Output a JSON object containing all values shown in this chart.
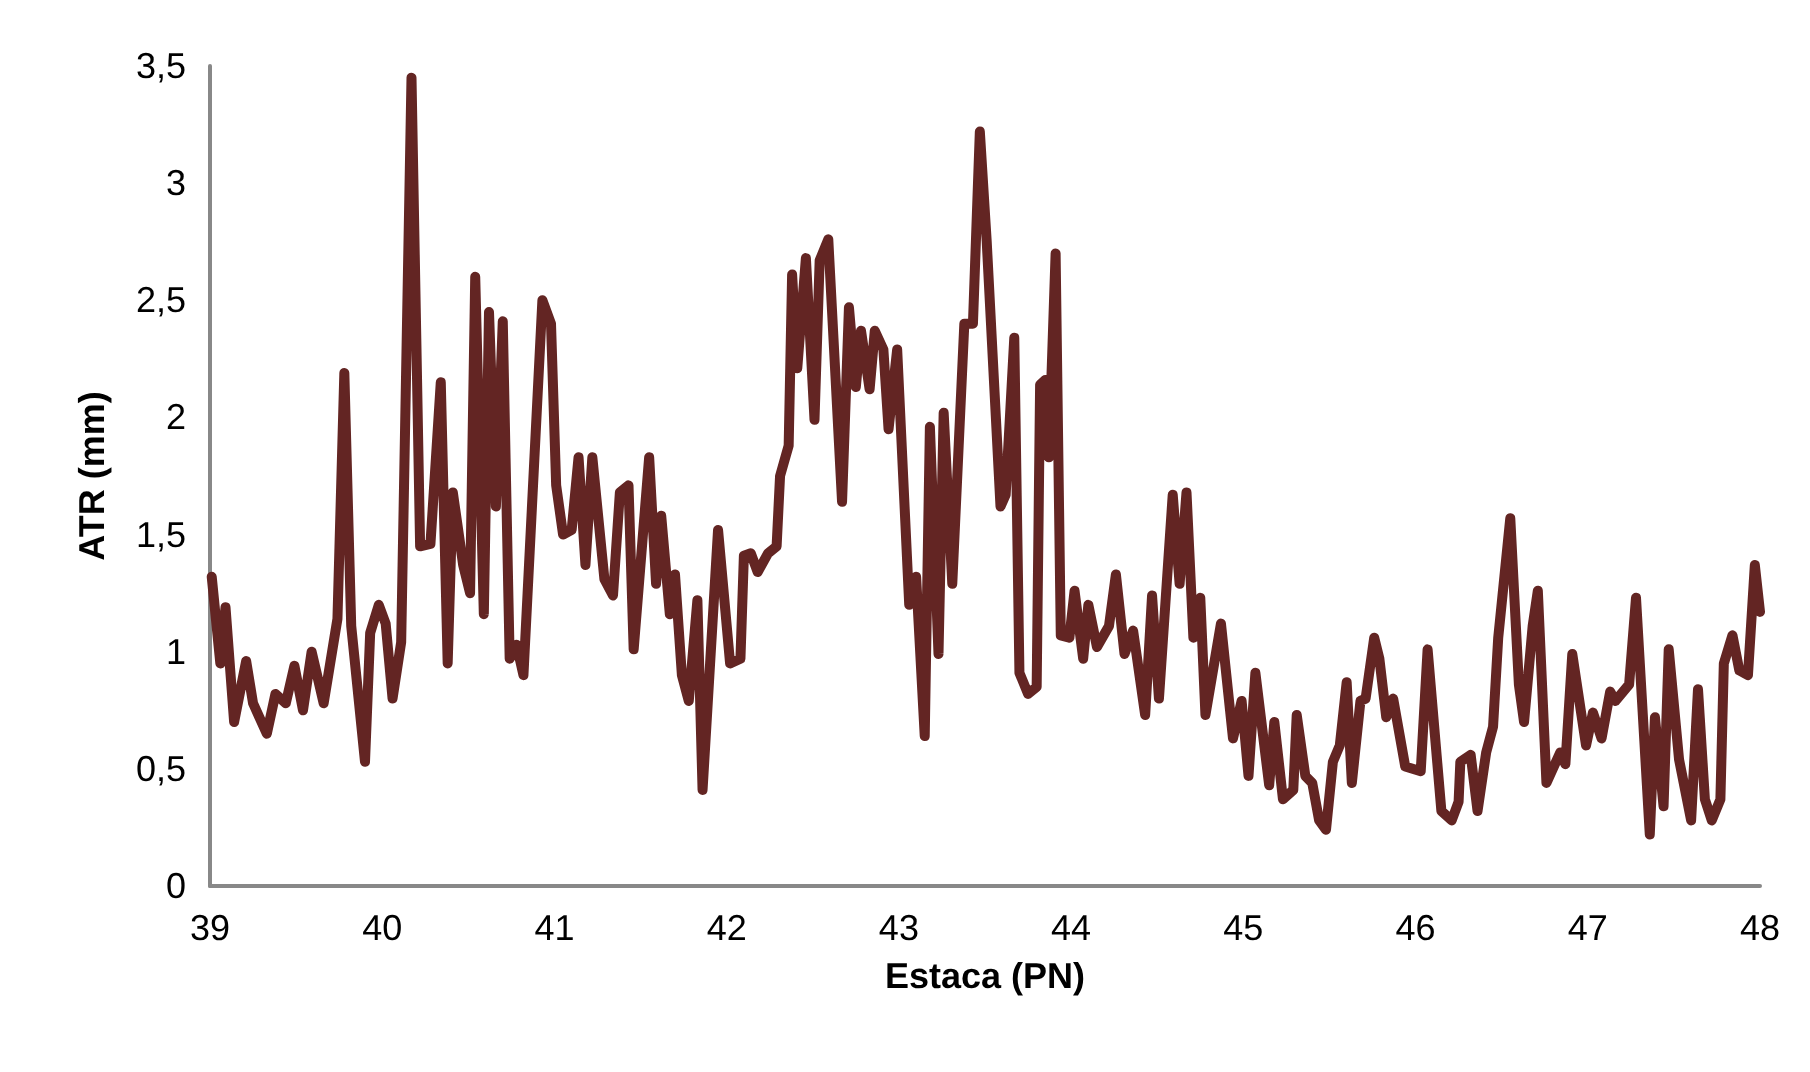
{
  "chart_data": {
    "type": "line",
    "xlabel": "Estaca (PN)",
    "ylabel": "ATR (mm)",
    "xlim": [
      39,
      48
    ],
    "xticks": [
      39,
      40,
      41,
      42,
      43,
      44,
      45,
      46,
      47,
      48
    ],
    "ylim": [
      0,
      3.5
    ],
    "yticks": [
      0,
      {
        "value": 0.5,
        "label": "0,5"
      },
      1,
      {
        "value": 1.5,
        "label": "1,5"
      },
      2,
      {
        "value": 2.5,
        "label": "2,5"
      },
      3,
      {
        "value": 3.5,
        "label": "3,5"
      }
    ],
    "grid": false,
    "marker": "none",
    "line_style": "solid",
    "series": [
      {
        "color": "#632523",
        "x": [
          39.01,
          39.06,
          39.09,
          39.14,
          39.21,
          39.25,
          39.33,
          39.38,
          39.44,
          39.49,
          39.54,
          39.59,
          39.66,
          39.74,
          39.78,
          39.82,
          39.9,
          39.93,
          39.98,
          40.02,
          40.06,
          40.11,
          40.17,
          40.22,
          40.28,
          40.34,
          40.38,
          40.41,
          40.47,
          40.51,
          40.54,
          40.59,
          40.62,
          40.66,
          40.7,
          40.74,
          40.78,
          40.82,
          40.93,
          40.98,
          41.01,
          41.05,
          41.1,
          41.14,
          41.18,
          41.22,
          41.29,
          41.34,
          41.38,
          41.43,
          41.46,
          41.55,
          41.59,
          41.62,
          41.67,
          41.7,
          41.74,
          41.78,
          41.83,
          41.86,
          41.95,
          42.02,
          42.08,
          42.1,
          42.14,
          42.18,
          42.24,
          42.29,
          42.31,
          42.36,
          42.38,
          42.41,
          42.46,
          42.51,
          42.54,
          42.59,
          42.67,
          42.71,
          42.75,
          42.78,
          42.83,
          42.86,
          42.91,
          42.94,
          42.99,
          43.06,
          43.1,
          43.15,
          43.18,
          43.23,
          43.26,
          43.31,
          43.38,
          43.43,
          43.47,
          43.51,
          43.59,
          43.62,
          43.67,
          43.7,
          43.75,
          43.8,
          43.82,
          43.85,
          43.87,
          43.91,
          43.94,
          43.99,
          44.02,
          44.07,
          44.1,
          44.15,
          44.22,
          44.26,
          44.31,
          44.36,
          44.43,
          44.47,
          44.51,
          44.59,
          44.63,
          44.67,
          44.71,
          44.75,
          44.78,
          44.87,
          44.94,
          44.99,
          45.03,
          45.07,
          45.15,
          45.18,
          45.23,
          45.29,
          45.31,
          45.36,
          45.4,
          45.44,
          45.48,
          45.52,
          45.56,
          45.6,
          45.63,
          45.68,
          45.71,
          45.76,
          45.79,
          45.83,
          45.87,
          45.94,
          46.03,
          46.07,
          46.15,
          46.21,
          46.25,
          46.26,
          46.32,
          46.36,
          46.41,
          46.45,
          46.48,
          46.55,
          46.6,
          46.63,
          46.68,
          46.71,
          46.76,
          46.84,
          46.87,
          46.91,
          46.99,
          47.03,
          47.08,
          47.13,
          47.16,
          47.24,
          47.28,
          47.36,
          47.39,
          47.44,
          47.47,
          47.53,
          47.6,
          47.64,
          47.68,
          47.72,
          47.77,
          47.79,
          47.84,
          47.88,
          47.93,
          47.97,
          48
        ],
        "values": [
          1.32,
          0.95,
          1.19,
          0.7,
          0.96,
          0.78,
          0.65,
          0.82,
          0.78,
          0.94,
          0.75,
          1.0,
          0.78,
          1.14,
          2.19,
          1.11,
          0.53,
          1.08,
          1.2,
          1.12,
          0.8,
          1.04,
          3.45,
          1.45,
          1.46,
          2.15,
          0.95,
          1.68,
          1.37,
          1.25,
          2.6,
          1.16,
          2.45,
          1.62,
          2.41,
          0.97,
          1.03,
          0.9,
          2.5,
          2.4,
          1.71,
          1.5,
          1.52,
          1.83,
          1.37,
          1.83,
          1.31,
          1.24,
          1.68,
          1.71,
          1.01,
          1.83,
          1.29,
          1.58,
          1.16,
          1.33,
          0.9,
          0.79,
          1.22,
          0.41,
          1.52,
          0.95,
          0.97,
          1.41,
          1.42,
          1.34,
          1.42,
          1.45,
          1.75,
          1.88,
          2.61,
          2.21,
          2.68,
          1.99,
          2.67,
          2.76,
          1.64,
          2.47,
          2.13,
          2.37,
          2.12,
          2.37,
          2.29,
          1.95,
          2.29,
          1.2,
          1.32,
          0.64,
          1.96,
          0.99,
          2.02,
          1.29,
          2.4,
          2.4,
          3.22,
          2.75,
          1.62,
          1.67,
          2.34,
          0.91,
          0.82,
          0.85,
          2.14,
          2.16,
          1.83,
          2.7,
          1.07,
          1.06,
          1.26,
          0.97,
          1.2,
          1.02,
          1.11,
          1.33,
          0.99,
          1.09,
          0.73,
          1.24,
          0.8,
          1.67,
          1.29,
          1.68,
          1.06,
          1.23,
          0.73,
          1.12,
          0.63,
          0.79,
          0.47,
          0.91,
          0.43,
          0.7,
          0.37,
          0.41,
          0.73,
          0.47,
          0.44,
          0.28,
          0.24,
          0.53,
          0.6,
          0.87,
          0.44,
          0.79,
          0.8,
          1.06,
          0.97,
          0.72,
          0.8,
          0.51,
          0.49,
          1.01,
          0.32,
          0.28,
          0.36,
          0.53,
          0.56,
          0.32,
          0.57,
          0.68,
          1.06,
          1.57,
          0.86,
          0.7,
          1.11,
          1.26,
          0.44,
          0.57,
          0.52,
          0.99,
          0.6,
          0.74,
          0.63,
          0.83,
          0.79,
          0.86,
          1.23,
          0.22,
          0.72,
          0.34,
          1.01,
          0.54,
          0.28,
          0.84,
          0.37,
          0.28,
          0.37,
          0.95,
          1.07,
          0.92,
          0.9,
          1.37,
          1.17
        ]
      }
    ]
  }
}
